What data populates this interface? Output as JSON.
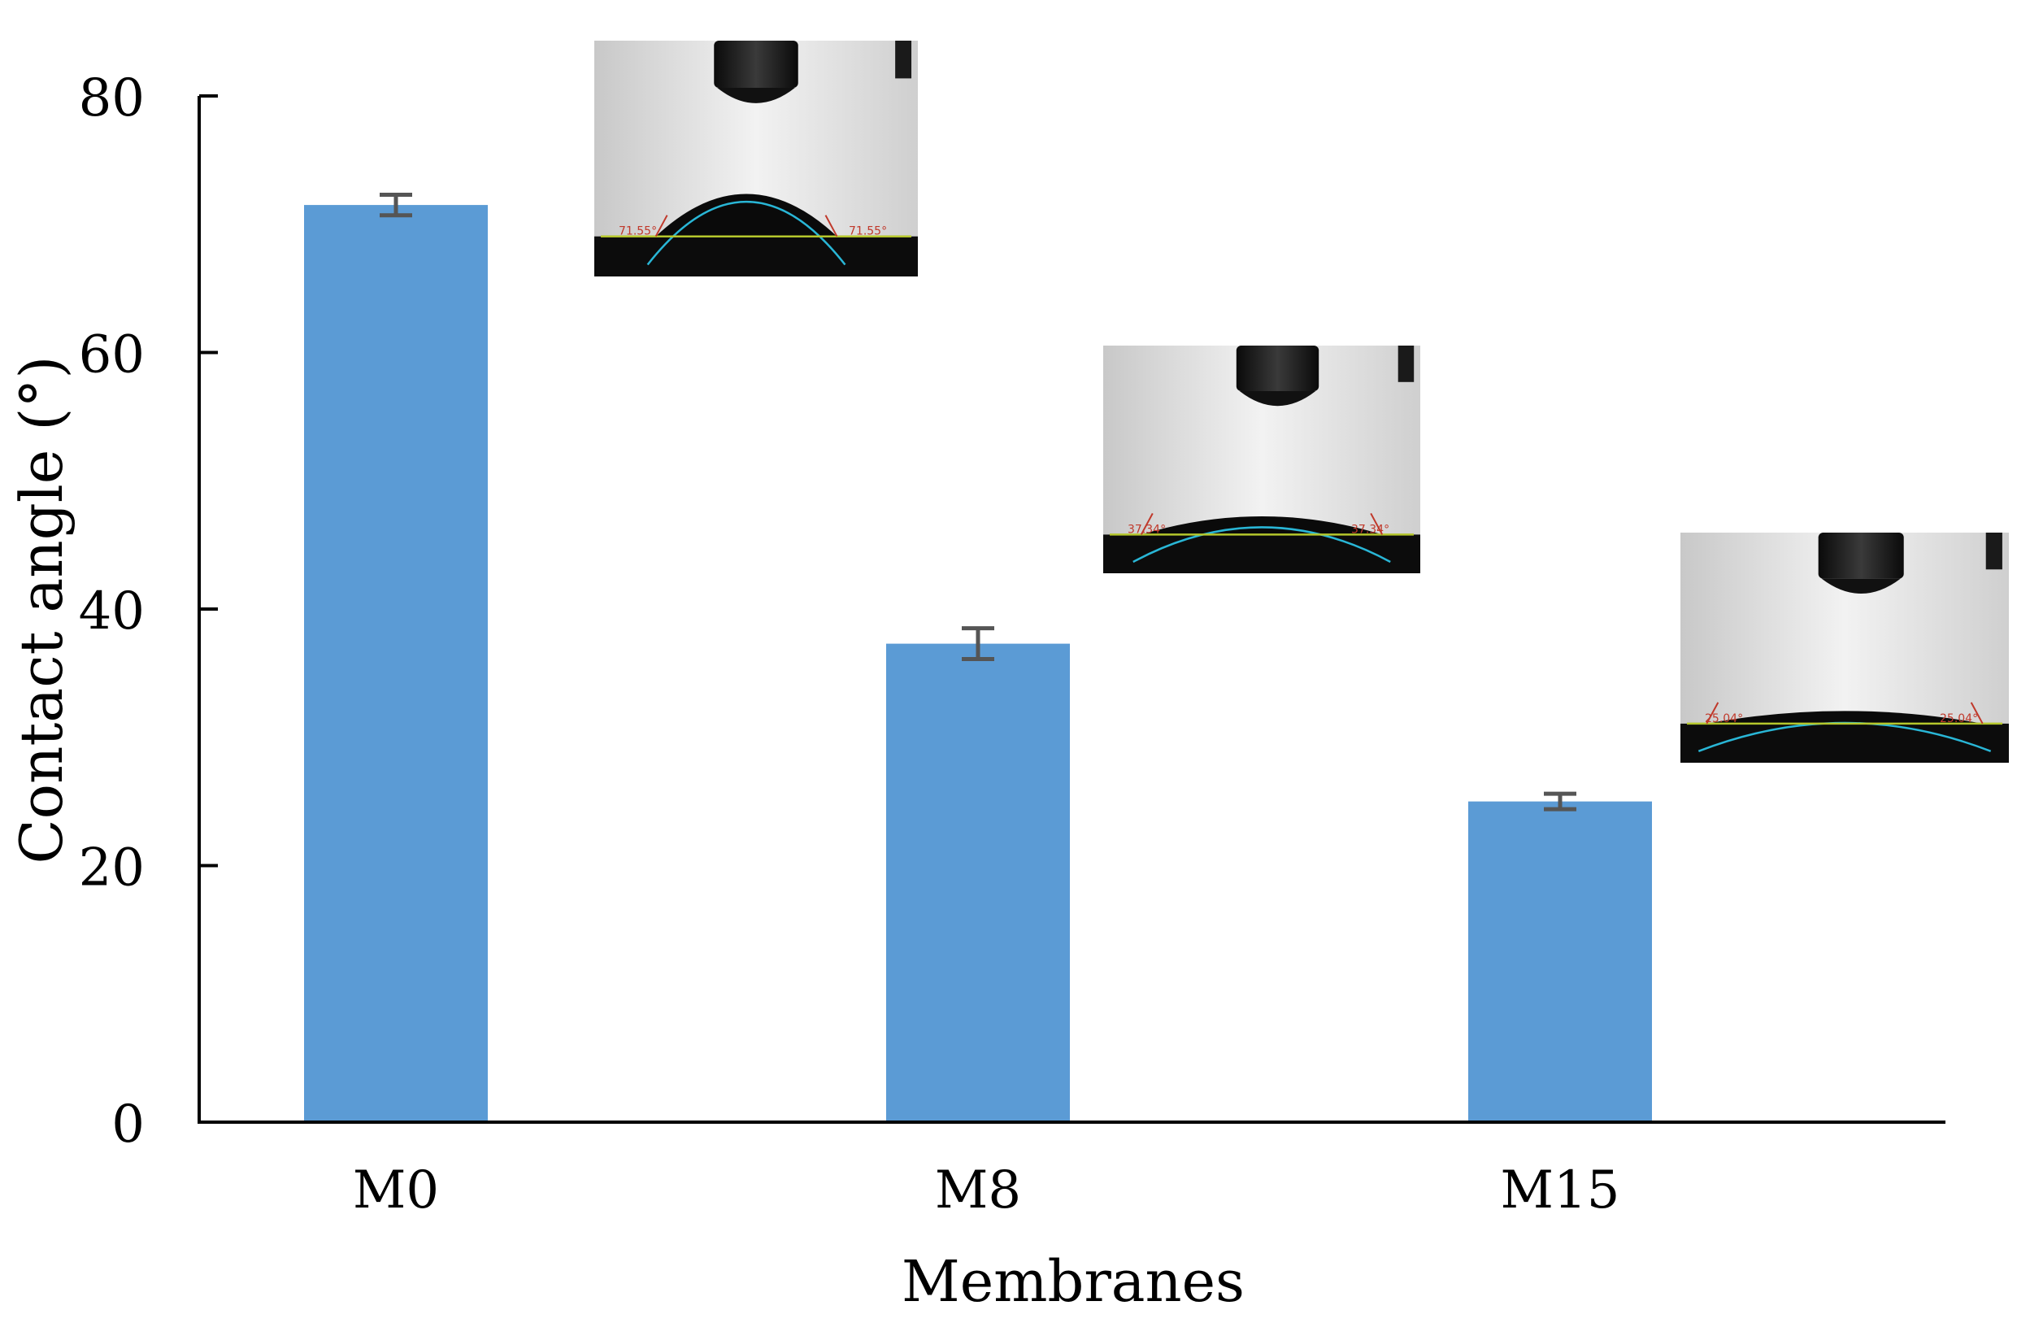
{
  "chart_data": {
    "type": "bar",
    "categories": [
      "M0",
      "M8",
      "M15"
    ],
    "values": [
      71.5,
      37.3,
      25.0
    ],
    "errors": [
      0.8,
      1.2,
      0.6
    ],
    "xlabel": "Membranes",
    "ylabel": "Contact angle (°)",
    "ylim": [
      0,
      80
    ],
    "yticks": [
      0,
      20,
      40,
      60,
      80
    ],
    "grid": false,
    "legend": "none",
    "bar_color": "#5b9bd5",
    "error_bar_color": "#555555",
    "insets": [
      {
        "category": "M0",
        "depicts": "sessile water droplet",
        "angle_label": "71.55°"
      },
      {
        "category": "M8",
        "depicts": "sessile water droplet",
        "angle_label": "37.34°"
      },
      {
        "category": "M15",
        "depicts": "sessile water droplet",
        "angle_label": "25.04°"
      }
    ]
  }
}
